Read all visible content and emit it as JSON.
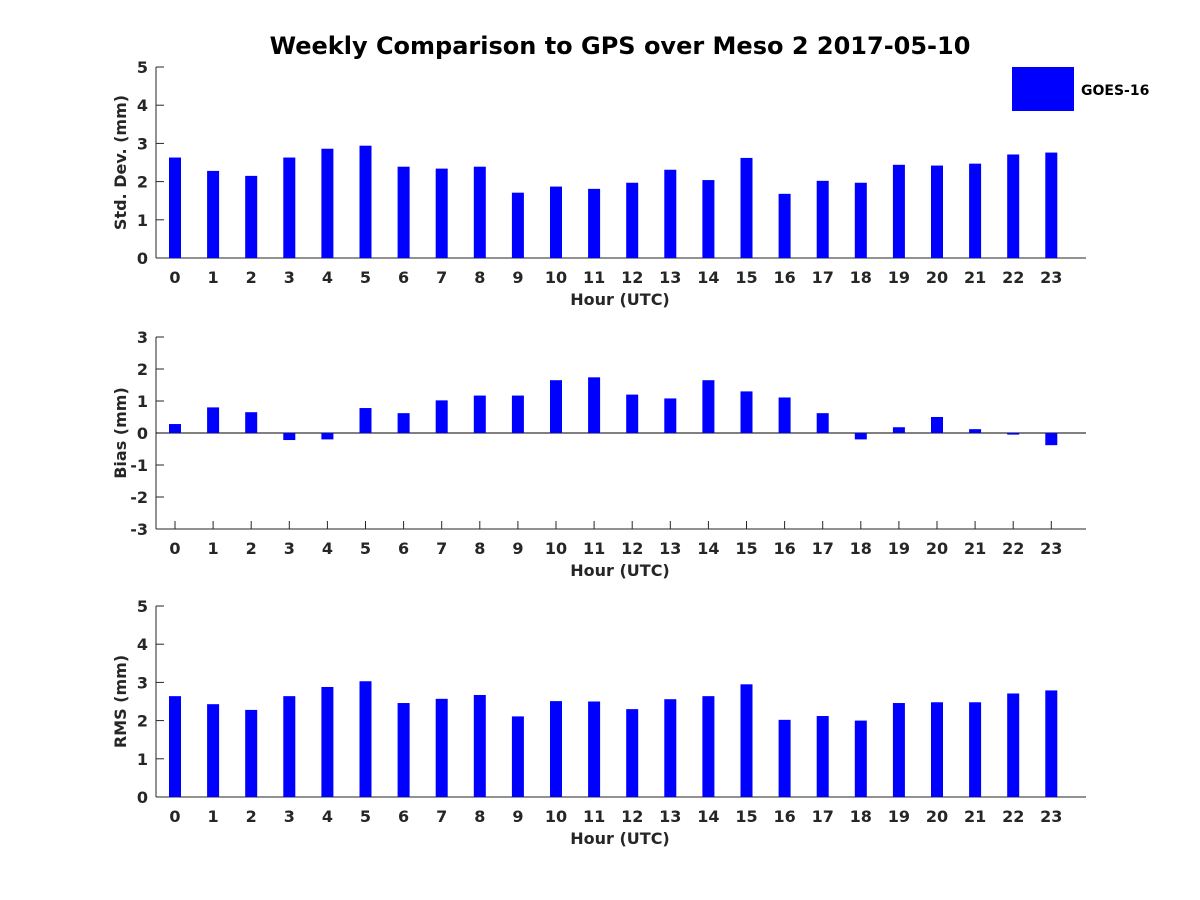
{
  "figure_title": "Weekly Comparison to GPS over Meso 2 2017-05-10",
  "colors": {
    "bar": "#0000ff",
    "axis": "#262626",
    "background": "#ffffff"
  },
  "legend": {
    "entries": [
      "GOES-16"
    ],
    "placement": "top-right"
  },
  "chart_data": [
    {
      "id": "std",
      "type": "bar",
      "title": "Weekly Comparison to GPS over Meso 2 2017-05-10",
      "xlabel": "Hour (UTC)",
      "ylabel": "Std. Dev. (mm)",
      "ylim": [
        0,
        5
      ],
      "yticks": [
        0,
        1,
        2,
        3,
        4,
        5
      ],
      "zero_line": false,
      "categories": [
        "0",
        "1",
        "2",
        "3",
        "4",
        "5",
        "6",
        "7",
        "8",
        "9",
        "10",
        "11",
        "12",
        "13",
        "14",
        "15",
        "16",
        "17",
        "18",
        "19",
        "20",
        "21",
        "22",
        "23"
      ],
      "series": [
        {
          "name": "GOES-16",
          "values": [
            2.63,
            2.28,
            2.15,
            2.63,
            2.86,
            2.94,
            2.39,
            2.34,
            2.39,
            1.71,
            1.87,
            1.81,
            1.97,
            2.31,
            2.04,
            2.62,
            1.68,
            2.02,
            1.97,
            2.44,
            2.42,
            2.47,
            2.71,
            2.76
          ]
        }
      ]
    },
    {
      "id": "bias",
      "type": "bar",
      "xlabel": "Hour (UTC)",
      "ylabel": "Bias (mm)",
      "ylim": [
        -3,
        3
      ],
      "yticks": [
        -3,
        -2,
        -1,
        0,
        1,
        2,
        3
      ],
      "zero_line": true,
      "categories": [
        "0",
        "1",
        "2",
        "3",
        "4",
        "5",
        "6",
        "7",
        "8",
        "9",
        "10",
        "11",
        "12",
        "13",
        "14",
        "15",
        "16",
        "17",
        "18",
        "19",
        "20",
        "21",
        "22",
        "23"
      ],
      "series": [
        {
          "name": "GOES-16",
          "values": [
            0.28,
            0.8,
            0.65,
            -0.22,
            -0.2,
            0.78,
            0.62,
            1.02,
            1.17,
            1.17,
            1.65,
            1.74,
            1.2,
            1.08,
            1.65,
            1.3,
            1.11,
            0.62,
            -0.2,
            0.18,
            0.5,
            0.12,
            -0.05,
            -0.38
          ]
        }
      ]
    },
    {
      "id": "rms",
      "type": "bar",
      "xlabel": "Hour (UTC)",
      "ylabel": "RMS (mm)",
      "ylim": [
        0,
        5
      ],
      "yticks": [
        0,
        1,
        2,
        3,
        4,
        5
      ],
      "zero_line": false,
      "categories": [
        "0",
        "1",
        "2",
        "3",
        "4",
        "5",
        "6",
        "7",
        "8",
        "9",
        "10",
        "11",
        "12",
        "13",
        "14",
        "15",
        "16",
        "17",
        "18",
        "19",
        "20",
        "21",
        "22",
        "23"
      ],
      "series": [
        {
          "name": "GOES-16",
          "values": [
            2.64,
            2.43,
            2.28,
            2.64,
            2.88,
            3.03,
            2.46,
            2.57,
            2.67,
            2.11,
            2.51,
            2.5,
            2.3,
            2.56,
            2.64,
            2.95,
            2.02,
            2.12,
            2.0,
            2.46,
            2.48,
            2.48,
            2.71,
            2.79
          ]
        }
      ]
    }
  ]
}
